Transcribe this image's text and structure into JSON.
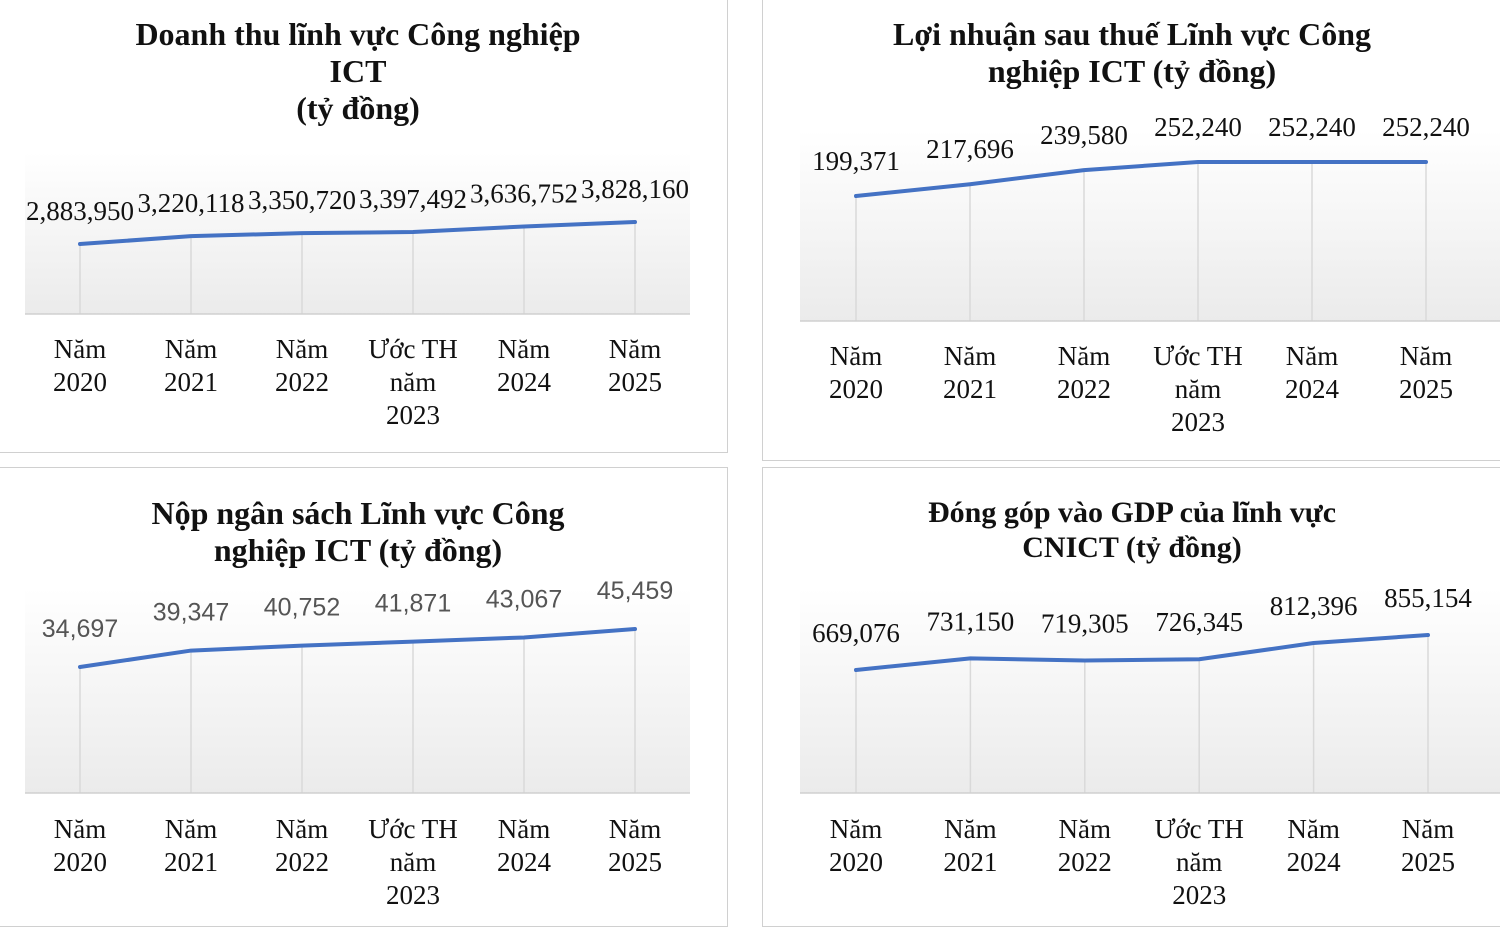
{
  "chart_data": [
    {
      "type": "area",
      "title": "Doanh thu lĩnh vực Công nghiệp\nICT\n(tỷ đồng)",
      "categories": [
        [
          "Năm",
          "2020"
        ],
        [
          "Năm",
          "2021"
        ],
        [
          "Năm",
          "2022"
        ],
        [
          "Ước TH",
          "năm",
          "2023"
        ],
        [
          "Năm",
          "2024"
        ],
        [
          "Năm",
          "2025"
        ]
      ],
      "values": [
        2883950,
        3220118,
        3350720,
        3397492,
        3636752,
        3828160
      ],
      "labels": [
        "2,883,950",
        "3,220,118",
        "3,350,720",
        "3,397,492",
        "3,636,752",
        "3,828,160"
      ],
      "line_color": "#4472C4",
      "grid": true
    },
    {
      "type": "area",
      "title": "Lợi nhuận sau thuế Lĩnh vực Công\nnghiệp ICT (tỷ đồng)",
      "categories": [
        [
          "Năm",
          "2020"
        ],
        [
          "Năm",
          "2021"
        ],
        [
          "Năm",
          "2022"
        ],
        [
          "Ước TH",
          "năm",
          "2023"
        ],
        [
          "Năm",
          "2024"
        ],
        [
          "Năm",
          "2025"
        ]
      ],
      "values": [
        199371,
        217696,
        239580,
        252240,
        252240,
        252240
      ],
      "labels": [
        "199,371",
        "217,696",
        "239,580",
        "252,240",
        "252,240",
        "252,240"
      ],
      "line_color": "#4472C4",
      "grid": true
    },
    {
      "type": "area",
      "title": "Nộp ngân sách Lĩnh vực Công\nnghiệp ICT (tỷ đồng)",
      "categories": [
        [
          "Năm",
          "2020"
        ],
        [
          "Năm",
          "2021"
        ],
        [
          "Năm",
          "2022"
        ],
        [
          "Ước TH",
          "năm",
          "2023"
        ],
        [
          "Năm",
          "2024"
        ],
        [
          "Năm",
          "2025"
        ]
      ],
      "values": [
        34697,
        39347,
        40752,
        41871,
        43067,
        45459
      ],
      "labels": [
        "34,697",
        "39,347",
        "40,752",
        "41,871",
        "43,067",
        "45,459"
      ],
      "line_color": "#4472C4",
      "grid": true
    },
    {
      "type": "area",
      "title": "Đóng góp vào GDP của lĩnh vực\nCNICT (tỷ đồng)",
      "categories": [
        [
          "Năm",
          "2020"
        ],
        [
          "Năm",
          "2021"
        ],
        [
          "Năm",
          "2022"
        ],
        [
          "Ước TH",
          "năm",
          "2023"
        ],
        [
          "Năm",
          "2024"
        ],
        [
          "Năm",
          "2025"
        ]
      ],
      "values": [
        669076,
        731150,
        719305,
        726345,
        812396,
        855154
      ],
      "labels": [
        "669,076",
        "731,150",
        "719,305",
        "726,345",
        "812,396",
        "855,154"
      ],
      "line_color": "#4472C4",
      "grid": true
    }
  ]
}
